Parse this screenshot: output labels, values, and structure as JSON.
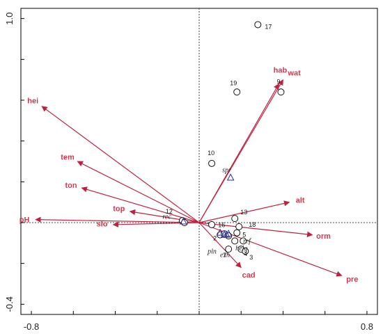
{
  "chart_data": {
    "type": "scatter",
    "subtype": "ordination-biplot",
    "title": "",
    "xlabel": "",
    "ylabel": "",
    "xlim": [
      -0.85,
      0.85
    ],
    "ylim": [
      -0.45,
      1.05
    ],
    "x_tick_labels": [
      {
        "value": -0.8,
        "label": "-0.8"
      },
      {
        "value": 0.8,
        "label": "0.8"
      }
    ],
    "y_tick_labels": [
      {
        "value": -0.4,
        "label": "-0.4"
      },
      {
        "value": 1.0,
        "label": "1.0"
      }
    ],
    "x_minor_ticks": [
      -0.8,
      -0.6,
      -0.4,
      -0.2,
      0,
      0.2,
      0.4,
      0.6,
      0.8
    ],
    "y_minor_ticks": [
      -0.4,
      -0.2,
      0,
      0.2,
      0.4,
      0.6,
      0.8,
      1.0
    ],
    "reference_lines": "dotted lines at x = 0 and y = 0",
    "colors": {
      "arrows": "#c0213f",
      "arrow_labels": "#d0394f",
      "species_markers": "#2a2aa8",
      "sites": "#111111",
      "frame": "#000000"
    },
    "environmental_vectors": [
      {
        "name": "hei",
        "x": -0.75,
        "y": 0.57
      },
      {
        "name": "tem",
        "x": -0.58,
        "y": 0.3
      },
      {
        "name": "ton",
        "x": -0.56,
        "y": 0.17
      },
      {
        "name": "top",
        "x": -0.33,
        "y": 0.055
      },
      {
        "name": "slo",
        "x": -0.41,
        "y": -0.01
      },
      {
        "name": "pH",
        "x": -0.78,
        "y": 0.015
      },
      {
        "name": "hab",
        "x": 0.38,
        "y": 0.68
      },
      {
        "name": "wat",
        "x": 0.4,
        "y": 0.7
      },
      {
        "name": "alt",
        "x": 0.43,
        "y": 0.1
      },
      {
        "name": "orm",
        "x": 0.54,
        "y": -0.06
      },
      {
        "name": "pre",
        "x": 0.68,
        "y": -0.26
      },
      {
        "name": "cad",
        "x": 0.2,
        "y": -0.22
      }
    ],
    "sites": [
      {
        "id": "17",
        "x": 0.28,
        "y": 0.97
      },
      {
        "id": "19",
        "x": 0.18,
        "y": 0.64
      },
      {
        "id": "9",
        "x": 0.39,
        "y": 0.64
      },
      {
        "id": "10",
        "x": 0.06,
        "y": 0.29
      },
      {
        "id": "13",
        "x": 0.17,
        "y": 0.02
      },
      {
        "id": "18",
        "x": 0.19,
        "y": -0.02
      },
      {
        "id": "5",
        "x": 0.18,
        "y": -0.05
      },
      {
        "id": "2",
        "x": 0.1,
        "y": -0.06
      },
      {
        "id": "16",
        "x": 0.17,
        "y": -0.09
      },
      {
        "id": "6",
        "x": 0.21,
        "y": -0.09
      },
      {
        "id": "7",
        "x": 0.14,
        "y": -0.13
      },
      {
        "id": "4",
        "x": 0.2,
        "y": -0.13
      },
      {
        "id": "3",
        "x": 0.22,
        "y": -0.14
      },
      {
        "id": "12",
        "x": -0.08,
        "y": 0.01
      },
      {
        "id": "14",
        "x": -0.07,
        "y": 0.0
      },
      {
        "id": "15",
        "x": 0.06,
        "y": -0.01
      },
      {
        "id": "8",
        "x": 0.12,
        "y": -0.055
      },
      {
        "id": "11",
        "x": 0.14,
        "y": -0.065
      }
    ],
    "site_labels_shown": [
      "17",
      "19",
      "9",
      "10",
      "13",
      "16",
      "12",
      "18",
      "5",
      "2",
      "16",
      "7",
      "3",
      "4"
    ],
    "species": [
      {
        "name": "spr",
        "x": 0.15,
        "y": 0.22
      },
      {
        "name": "rec",
        "x": -0.075,
        "y": 0.005
      },
      {
        "name": "ref",
        "x": 0.13,
        "y": -0.06
      },
      {
        "name": "pln",
        "x": 0.1,
        "y": -0.05
      },
      {
        "name": "exn",
        "x": 0.12,
        "y": -0.06
      },
      {
        "name": "heig",
        "x": 0.14,
        "y": -0.055
      }
    ]
  }
}
